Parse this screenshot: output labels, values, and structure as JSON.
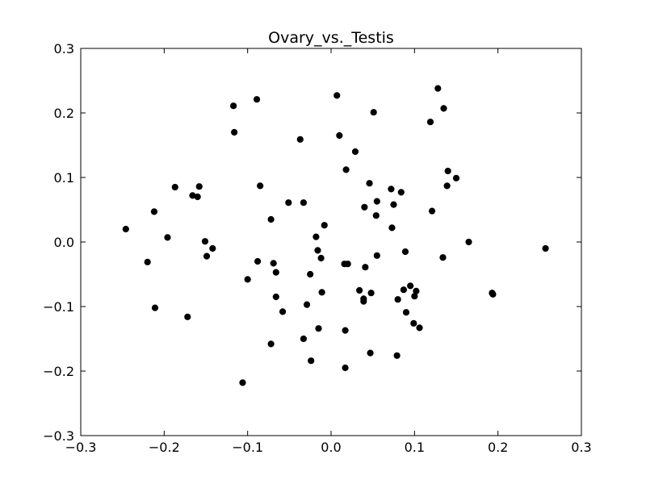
{
  "chart_data": {
    "type": "scatter",
    "title": "Ovary_vs._Testis",
    "xlabel": "",
    "ylabel": "",
    "xlim": [
      -0.3,
      0.3
    ],
    "ylim": [
      -0.3,
      0.3
    ],
    "xticks": [
      -0.3,
      -0.2,
      -0.1,
      0.0,
      0.1,
      0.2,
      0.3
    ],
    "yticks": [
      -0.3,
      -0.2,
      -0.1,
      0.0,
      0.1,
      0.2,
      0.3
    ],
    "xtick_labels": [
      "−0.3",
      "−0.2",
      "−0.1",
      "0.0",
      "0.1",
      "0.2",
      "0.3"
    ],
    "ytick_labels": [
      "−0.3",
      "−0.2",
      "−0.1",
      "0.0",
      "0.1",
      "0.2",
      "0.3"
    ],
    "grid": false,
    "marker_color": "#000000",
    "series": [
      {
        "points": [
          [
            -0.246,
            0.02
          ],
          [
            -0.22,
            -0.031
          ],
          [
            -0.212,
            0.047
          ],
          [
            -0.211,
            -0.102
          ],
          [
            -0.196,
            0.007
          ],
          [
            -0.187,
            0.085
          ],
          [
            -0.172,
            -0.116
          ],
          [
            -0.166,
            0.072
          ],
          [
            -0.16,
            0.07
          ],
          [
            -0.158,
            0.086
          ],
          [
            -0.151,
            0.001
          ],
          [
            -0.149,
            -0.022
          ],
          [
            -0.142,
            -0.01
          ],
          [
            -0.117,
            0.211
          ],
          [
            -0.116,
            0.17
          ],
          [
            -0.106,
            -0.218
          ],
          [
            -0.1,
            -0.058
          ],
          [
            -0.089,
            0.221
          ],
          [
            -0.088,
            -0.03
          ],
          [
            -0.085,
            0.087
          ],
          [
            -0.072,
            0.035
          ],
          [
            -0.072,
            -0.158
          ],
          [
            -0.069,
            -0.033
          ],
          [
            -0.066,
            -0.047
          ],
          [
            -0.066,
            -0.085
          ],
          [
            -0.058,
            -0.108
          ],
          [
            -0.051,
            0.061
          ],
          [
            -0.037,
            0.159
          ],
          [
            -0.033,
            -0.15
          ],
          [
            -0.033,
            0.061
          ],
          [
            -0.029,
            -0.097
          ],
          [
            -0.025,
            -0.05
          ],
          [
            -0.024,
            -0.184
          ],
          [
            -0.018,
            0.008
          ],
          [
            -0.016,
            -0.013
          ],
          [
            -0.015,
            -0.134
          ],
          [
            -0.012,
            -0.025
          ],
          [
            -0.011,
            -0.078
          ],
          [
            -0.008,
            0.026
          ],
          [
            0.007,
            0.227
          ],
          [
            0.01,
            0.165
          ],
          [
            0.016,
            -0.034
          ],
          [
            0.017,
            -0.137
          ],
          [
            0.017,
            -0.195
          ],
          [
            0.018,
            0.112
          ],
          [
            0.02,
            -0.034
          ],
          [
            0.029,
            0.14
          ],
          [
            0.034,
            -0.075
          ],
          [
            0.039,
            -0.088
          ],
          [
            0.039,
            -0.092
          ],
          [
            0.04,
            0.054
          ],
          [
            0.041,
            -0.039
          ],
          [
            0.046,
            0.091
          ],
          [
            0.047,
            -0.172
          ],
          [
            0.048,
            -0.079
          ],
          [
            0.051,
            0.201
          ],
          [
            0.054,
            0.041
          ],
          [
            0.055,
            0.063
          ],
          [
            0.055,
            -0.021
          ],
          [
            0.072,
            0.082
          ],
          [
            0.073,
            0.022
          ],
          [
            0.075,
            0.058
          ],
          [
            0.079,
            -0.176
          ],
          [
            0.08,
            -0.089
          ],
          [
            0.084,
            0.077
          ],
          [
            0.087,
            -0.074
          ],
          [
            0.089,
            -0.015
          ],
          [
            0.09,
            -0.109
          ],
          [
            0.095,
            -0.068
          ],
          [
            0.099,
            -0.126
          ],
          [
            0.1,
            -0.084
          ],
          [
            0.102,
            -0.076
          ],
          [
            0.106,
            -0.133
          ],
          [
            0.119,
            0.186
          ],
          [
            0.121,
            0.048
          ],
          [
            0.128,
            0.238
          ],
          [
            0.134,
            -0.024
          ],
          [
            0.135,
            0.207
          ],
          [
            0.139,
            0.087
          ],
          [
            0.14,
            0.11
          ],
          [
            0.15,
            0.099
          ],
          [
            0.165,
            0.0
          ],
          [
            0.193,
            -0.079
          ],
          [
            0.194,
            -0.081
          ],
          [
            0.257,
            -0.01
          ]
        ]
      }
    ]
  }
}
